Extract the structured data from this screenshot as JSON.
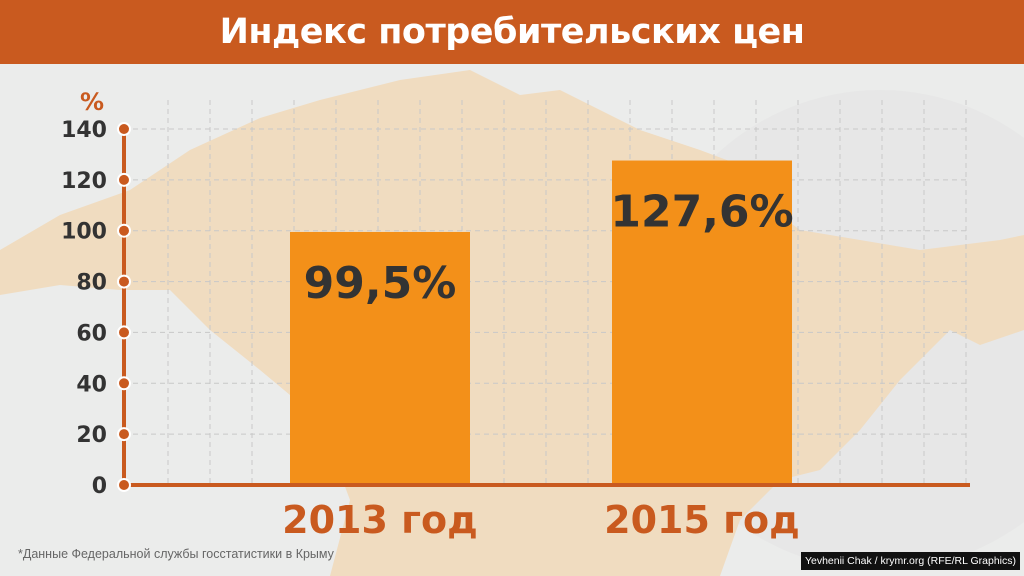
{
  "header": {
    "title": "Индекс потребительских цен"
  },
  "chart_data": {
    "type": "bar",
    "title": "Индекс потребительских цен",
    "ylabel": "%",
    "xlabel": "",
    "categories": [
      "2013 год",
      "2015 год"
    ],
    "values": [
      99.5,
      127.6
    ],
    "data_labels": [
      "99,5%",
      "127,6%"
    ],
    "ylim": [
      0,
      140
    ],
    "yticks": [
      "0",
      "20",
      "40",
      "60",
      "80",
      "100",
      "120",
      "140"
    ],
    "grid": true,
    "colors": {
      "bar": "#f39019",
      "axis": "#c95a1f",
      "title_bar": "#c95a1f",
      "label": "#333333",
      "category": "#c95a1f"
    }
  },
  "footnote": "*Данные Федеральной службы госстатистики в Крыму",
  "credit": "Yevhenii Chak / krymr.org (RFE/RL Graphics)"
}
